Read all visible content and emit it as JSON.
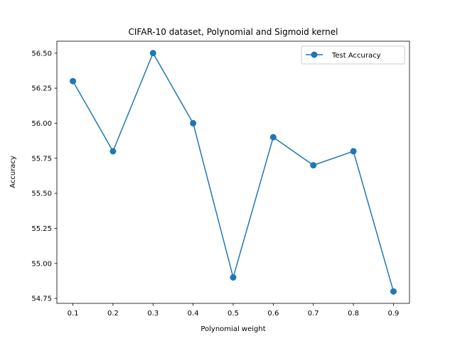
{
  "chart_data": {
    "type": "line",
    "title": "CIFAR-10 dataset, Polynomial and Sigmoid kernel",
    "xlabel": "Polynomial weight",
    "ylabel": "Accuracy",
    "x": [
      0.1,
      0.2,
      0.3,
      0.4,
      0.5,
      0.6,
      0.7,
      0.8,
      0.9
    ],
    "x_tick_labels": [
      "0.1",
      "0.2",
      "0.3",
      "0.4",
      "0.5",
      "0.6",
      "0.7",
      "0.8",
      "0.9"
    ],
    "y_ticks": [
      54.75,
      55.0,
      55.25,
      55.5,
      55.75,
      56.0,
      56.25,
      56.5
    ],
    "y_tick_labels": [
      "54.75",
      "55.00",
      "55.25",
      "55.50",
      "55.75",
      "56.00",
      "56.25",
      "56.50"
    ],
    "xlim": [
      0.06,
      0.94
    ],
    "ylim": [
      54.715,
      56.585
    ],
    "grid": false,
    "legend_position": "top-right",
    "series": [
      {
        "name": "Test Accuracy",
        "color": "#1f77b4",
        "marker": "circle",
        "values": [
          56.3,
          55.8,
          56.5,
          56.0,
          54.9,
          55.9,
          55.7,
          55.8,
          54.8
        ]
      }
    ]
  }
}
